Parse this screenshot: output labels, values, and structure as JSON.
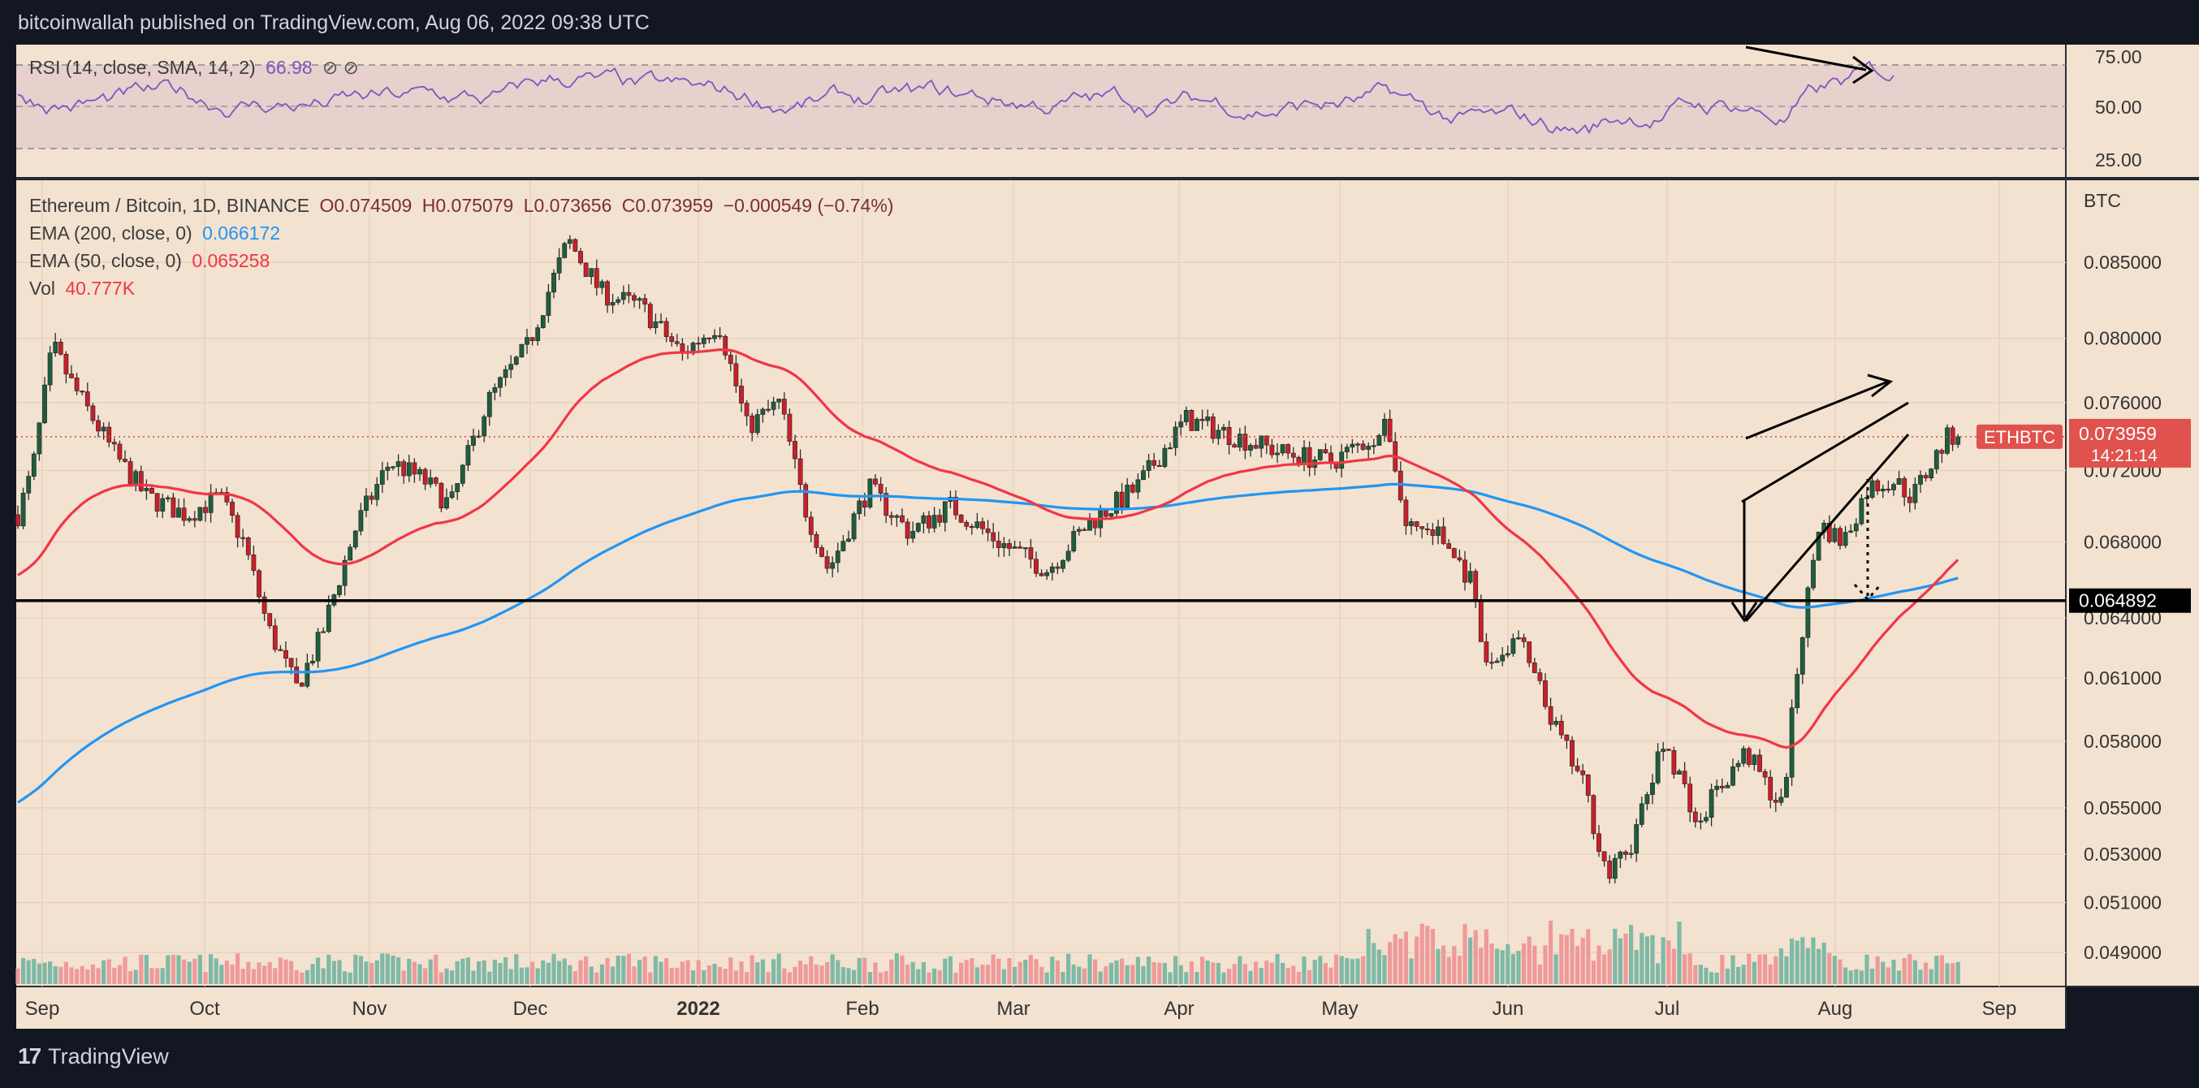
{
  "header": {
    "publisher_line": "bitcoinwallah published on TradingView.com, Aug 06, 2022 09:38 UTC"
  },
  "footer": {
    "brand": "TradingView",
    "logo_glyph": "17"
  },
  "colors": {
    "panel_bg": "#f3e2d0",
    "rsi_band": "#e8d0cc",
    "rsi_line": "#7e57c2",
    "ema200": "#2196f3",
    "ema50": "#f23645",
    "candle_up": "#1e5e3e",
    "candle_down": "#c8202a",
    "vol_up": "#7fb9a6",
    "vol_down": "#ef9a9a",
    "price_tag": "#e0524d"
  },
  "legend": {
    "symbol": "Ethereum / Bitcoin, 1D, BINANCE",
    "open": "O0.074509",
    "high": "H0.075079",
    "low": "L0.073656",
    "close": "C0.073959",
    "change": "−0.000549 (−0.74%)",
    "ema200_label": "EMA (200, close, 0)",
    "ema200_value": "0.066172",
    "ema50_label": "EMA (50, close, 0)",
    "ema50_value": "0.065258",
    "vol_label": "Vol",
    "vol_value": "40.777K",
    "rsi_label": "RSI (14, close, SMA, 14, 2)",
    "rsi_value": "66.98"
  },
  "price_tags": {
    "symbol_tag": "ETHBTC",
    "last_price": "0.073959",
    "countdown": "14:21:14",
    "support_level": "0.064892"
  },
  "chart_data": {
    "type": "line",
    "x_axis_labels": [
      "Sep",
      "Oct",
      "Nov",
      "Dec",
      "2022",
      "Feb",
      "Mar",
      "Apr",
      "May",
      "Jun",
      "Jul",
      "Aug",
      "Sep"
    ],
    "price_axis_unit": "BTC",
    "price_ticks": [
      "0.085000",
      "0.080000",
      "0.076000",
      "0.072000",
      "0.068000",
      "0.064000",
      "0.061000",
      "0.058000",
      "0.055000",
      "0.053000",
      "0.051000",
      "0.049000"
    ],
    "rsi_ticks": [
      "75.00",
      "50.00",
      "25.00"
    ],
    "ylim": [
      0.048,
      0.09
    ],
    "log_scale": true,
    "support_price": 0.064892,
    "last_price": 0.073959,
    "monthly_close": [
      [
        "Sep",
        0.074
      ],
      [
        "Oct",
        0.068
      ],
      [
        "Nov",
        0.073
      ],
      [
        "Dec",
        0.085
      ],
      [
        "2022",
        0.08
      ],
      [
        "Feb",
        0.071
      ],
      [
        "Mar",
        0.068
      ],
      [
        "Apr",
        0.075
      ],
      [
        "May",
        0.073
      ],
      [
        "Jun",
        0.055
      ],
      [
        "Jul",
        0.058
      ],
      [
        "Aug",
        0.074
      ]
    ],
    "series": [
      {
        "name": "EMA (200, close, 0)",
        "last": 0.066172
      },
      {
        "name": "EMA (50, close, 0)",
        "last": 0.065258
      }
    ]
  }
}
